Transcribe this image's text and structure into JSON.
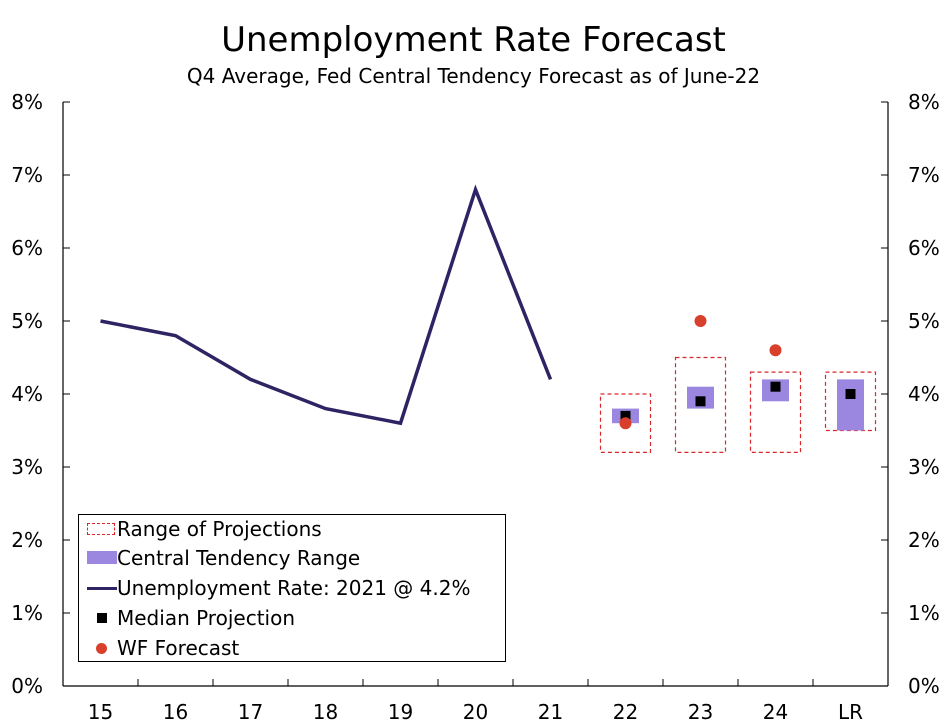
{
  "chart_data": {
    "type": "line",
    "title": "Unemployment Rate Forecast",
    "subtitle": "Q4 Average, Fed Central Tendency Forecast as of June-22",
    "xlabel": "",
    "ylabel": "",
    "categories": [
      "15",
      "16",
      "17",
      "18",
      "19",
      "20",
      "21",
      "22",
      "23",
      "24",
      "LR"
    ],
    "ylim": [
      0,
      8
    ],
    "yticks": [
      "0%",
      "1%",
      "2%",
      "3%",
      "4%",
      "5%",
      "6%",
      "7%",
      "8%"
    ],
    "grid": false,
    "legend_position": "bottom-left",
    "series": [
      {
        "name": "Unemployment Rate: 2021 @ 4.2%",
        "kind": "line",
        "color": "#2e2464",
        "x": [
          "15",
          "16",
          "17",
          "18",
          "19",
          "20",
          "21"
        ],
        "values": [
          5.0,
          4.8,
          4.2,
          3.8,
          3.6,
          6.8,
          4.2
        ]
      },
      {
        "name": "Range of Projections",
        "kind": "range-box",
        "color": "#d8282a",
        "x": [
          "22",
          "23",
          "24",
          "LR"
        ],
        "low": [
          3.2,
          3.2,
          3.2,
          3.5
        ],
        "high": [
          4.0,
          4.5,
          4.3,
          4.3
        ]
      },
      {
        "name": "Central Tendency Range",
        "kind": "range-bar",
        "color": "#9b87df",
        "x": [
          "22",
          "23",
          "24",
          "LR"
        ],
        "low": [
          3.6,
          3.8,
          3.9,
          3.5
        ],
        "high": [
          3.8,
          4.1,
          4.2,
          4.2
        ]
      },
      {
        "name": "Median Projection",
        "kind": "marker-square",
        "color": "#000000",
        "x": [
          "22",
          "23",
          "24",
          "LR"
        ],
        "values": [
          3.7,
          3.9,
          4.1,
          4.0
        ]
      },
      {
        "name": "WF Forecast",
        "kind": "marker-circle",
        "color": "#d8402c",
        "x": [
          "22",
          "23",
          "24"
        ],
        "values": [
          3.6,
          5.0,
          4.6
        ]
      }
    ]
  },
  "legend": {
    "items": [
      {
        "label": "Range of Projections"
      },
      {
        "label": "Central Tendency Range"
      },
      {
        "label": "Unemployment Rate: 2021 @ 4.2%"
      },
      {
        "label": "Median Projection"
      },
      {
        "label": "WF Forecast"
      }
    ]
  }
}
